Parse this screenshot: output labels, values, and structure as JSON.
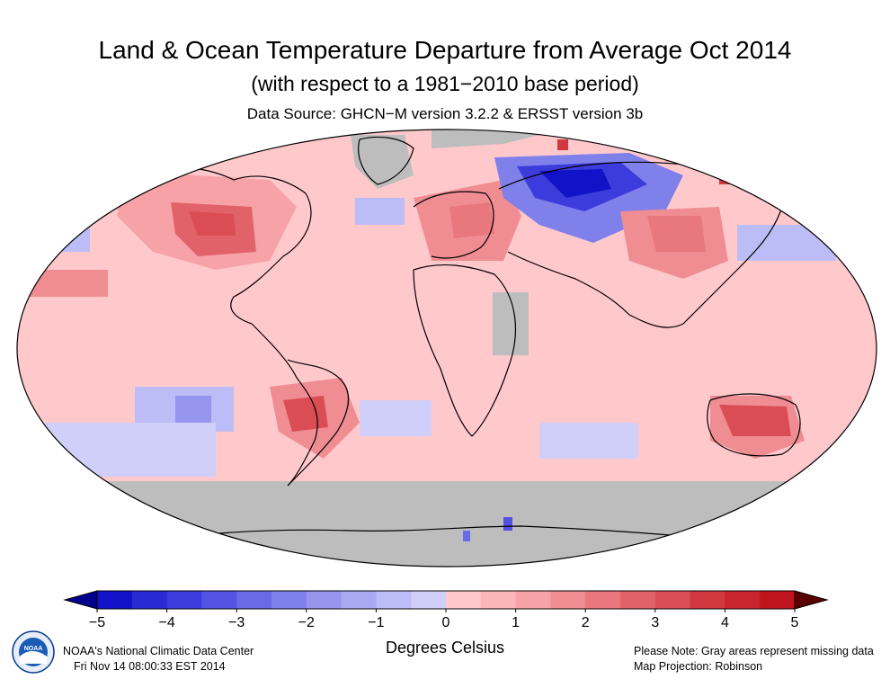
{
  "header": {
    "title": "Land & Ocean Temperature Departure from Average Oct 2014",
    "subtitle": "(with respect to a 1981−2010 base period)",
    "source": "Data Source: GHCN−M version 3.2.2 & ERSST version 3b"
  },
  "legend": {
    "unit_label": "Degrees Celsius",
    "range": [
      -5,
      5
    ],
    "step": 0.5,
    "ticks": [
      "−5",
      "−4",
      "−3",
      "−2",
      "−1",
      "0",
      "1",
      "2",
      "3",
      "4",
      "5"
    ],
    "colors": [
      "#1212c8",
      "#2a2ad2",
      "#3c3cdc",
      "#5353e2",
      "#6a6ae6",
      "#8080ea",
      "#9595ee",
      "#a9a9f2",
      "#bcbcf6",
      "#cfcff9",
      "#ffc9cc",
      "#fbb6ba",
      "#f6a2a7",
      "#f08d93",
      "#e9777e",
      "#e26269",
      "#da4d55",
      "#d13840",
      "#c8252e",
      "#c0141c"
    ],
    "under_color": "#00008b",
    "over_color": "#5a0000"
  },
  "map": {
    "projection": "Robinson",
    "missing_color": "#bdbdbd",
    "coastline_color": "#000000"
  },
  "footer": {
    "org": "NOAA's National Climatic Data Center",
    "timestamp": "Fri Nov 14 08:00:33 EST 2014",
    "note": "Please Note: Gray areas represent missing data",
    "projection_note": "Map Projection: Robinson"
  },
  "logo": {
    "name": "noaa-logo",
    "text": "NOAA"
  }
}
